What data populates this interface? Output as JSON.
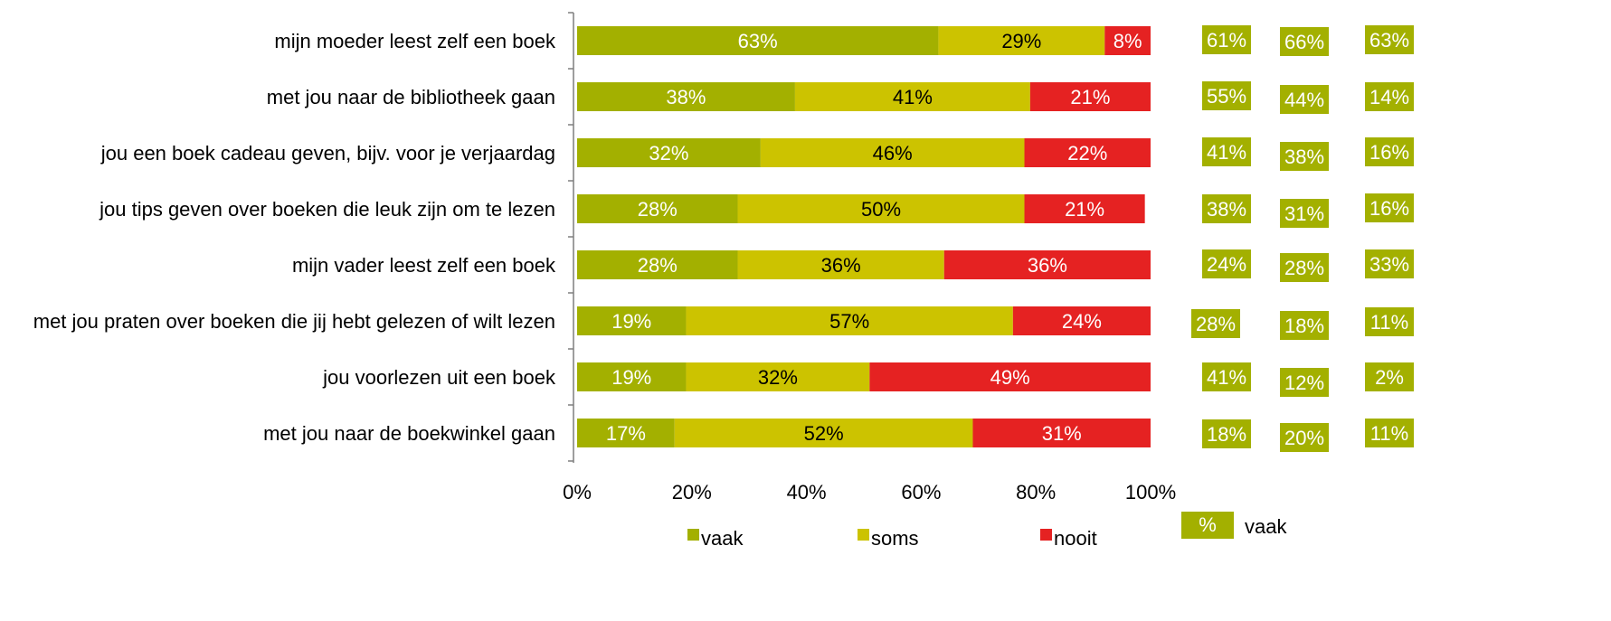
{
  "chart_data": {
    "type": "bar",
    "orientation": "horizontal",
    "stacked": "percent",
    "categories": [
      "mijn moeder leest zelf een boek",
      "met jou naar  de bibliotheek gaan",
      "jou een boek cadeau geven, bijv. voor je verjaardag",
      "jou tips geven over boeken die leuk zijn om te lezen",
      "mijn vader leest zelf een boek",
      "met jou praten over boeken die jij hebt gelezen of wilt lezen",
      "jou voorlezen uit een boek",
      "met jou naar  de boekwinkel  gaan"
    ],
    "series": [
      {
        "name": "vaak",
        "color": "#a3b000",
        "label_color": "#ffffff",
        "values": [
          63,
          38,
          32,
          28,
          28,
          19,
          19,
          17
        ]
      },
      {
        "name": "soms",
        "color": "#ccc300",
        "label_color": "#000000",
        "values": [
          29,
          41,
          46,
          50,
          36,
          57,
          32,
          52
        ]
      },
      {
        "name": "nooit",
        "color": "#e52222",
        "label_color": "#ffffff",
        "values": [
          8,
          21,
          22,
          21,
          36,
          24,
          49,
          31
        ]
      }
    ],
    "data_labels": [
      [
        "63%",
        "29%",
        "8%"
      ],
      [
        "38%",
        "41%",
        "21%"
      ],
      [
        "32%",
        "46%",
        "22%"
      ],
      [
        "28%",
        "50%",
        "21%"
      ],
      [
        "28%",
        "36%",
        "36%"
      ],
      [
        "19%",
        "57%",
        "24%"
      ],
      [
        "19%",
        "32%",
        "49%"
      ],
      [
        "17%",
        "52%",
        "31%"
      ]
    ],
    "xlim": [
      0,
      100
    ],
    "x_ticks": [
      "0%",
      "20%",
      "40%",
      "60%",
      "80%",
      "100%"
    ],
    "grid": false,
    "legend": {
      "placement": "bottom",
      "items": [
        "vaak",
        "soms",
        "nooit"
      ]
    },
    "side_columns": {
      "color": "#a3b000",
      "text_color": "#ffffff",
      "columns": [
        [
          "61%",
          "55%",
          "41%",
          "38%",
          "24%",
          "28%",
          "41%",
          "18%"
        ],
        [
          "66%",
          "44%",
          "38%",
          "31%",
          "28%",
          "18%",
          "12%",
          "20%"
        ],
        [
          "63%",
          "14%",
          "16%",
          "16%",
          "33%",
          "11%",
          "2%",
          "11%"
        ]
      ],
      "legend": {
        "box_label": "%",
        "text": "vaak"
      }
    }
  }
}
